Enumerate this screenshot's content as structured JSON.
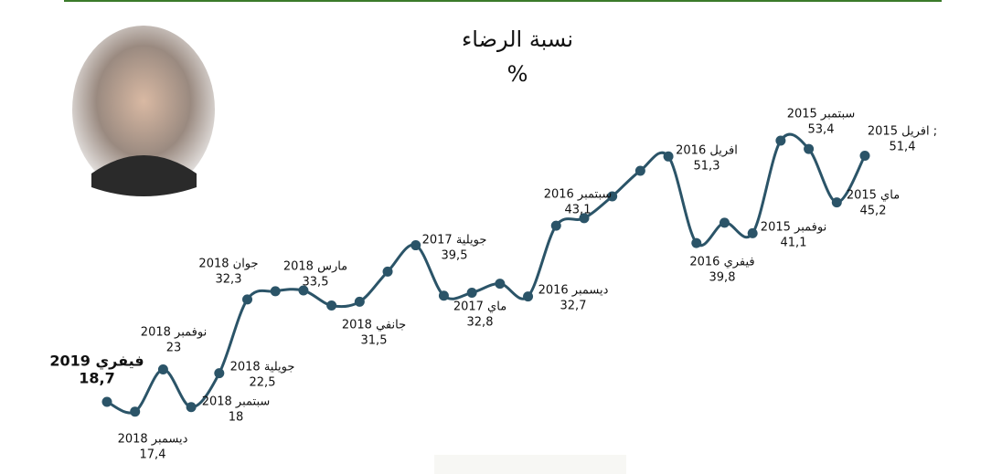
{
  "chart_data": {
    "type": "line",
    "title": "نسبة الرضاء",
    "subtitle": "%",
    "categories": [
      "فيفري 2019",
      "ديسمبر 2018",
      "نوفمبر 2018",
      "سبتمبر 2018",
      "جويلية 2018",
      "جوان 2018",
      null,
      "مارس 2018",
      "جانفي 2018",
      null,
      null,
      "جويلية 2017",
      "ماي 2017",
      null,
      null,
      "ديسمبر 2016",
      null,
      "سبتمبر 2016",
      null,
      null,
      "افريل 2016",
      "فيفري 2016",
      null,
      "نوفمبر 2015",
      "سبتمبر 2015",
      null,
      "ماي 2015",
      "افريل 2015 ;"
    ],
    "series": [
      {
        "name": "نسبة الرضاء",
        "color": "#2b5468",
        "values": [
          18.7,
          17.4,
          23,
          18,
          22.5,
          32.3,
          33.4,
          33.5,
          31.5,
          32.0,
          36.0,
          39.5,
          32.8,
          33.2,
          34.4,
          32.7,
          42.1,
          43.1,
          46.0,
          49.4,
          51.3,
          39.8,
          42.5,
          41.1,
          53.4,
          52.3,
          45.2,
          51.4
        ],
        "value_labels": [
          "18,7",
          "17,4",
          "23",
          "18",
          "22,5",
          "32,3",
          null,
          "33,5",
          "31,5",
          null,
          null,
          "39,5",
          "32,8",
          null,
          null,
          "32,7",
          null,
          "43,1",
          null,
          null,
          "51,3",
          "39,8",
          null,
          "41,1",
          "53,4",
          null,
          "45,2",
          "51,4"
        ]
      }
    ]
  }
}
